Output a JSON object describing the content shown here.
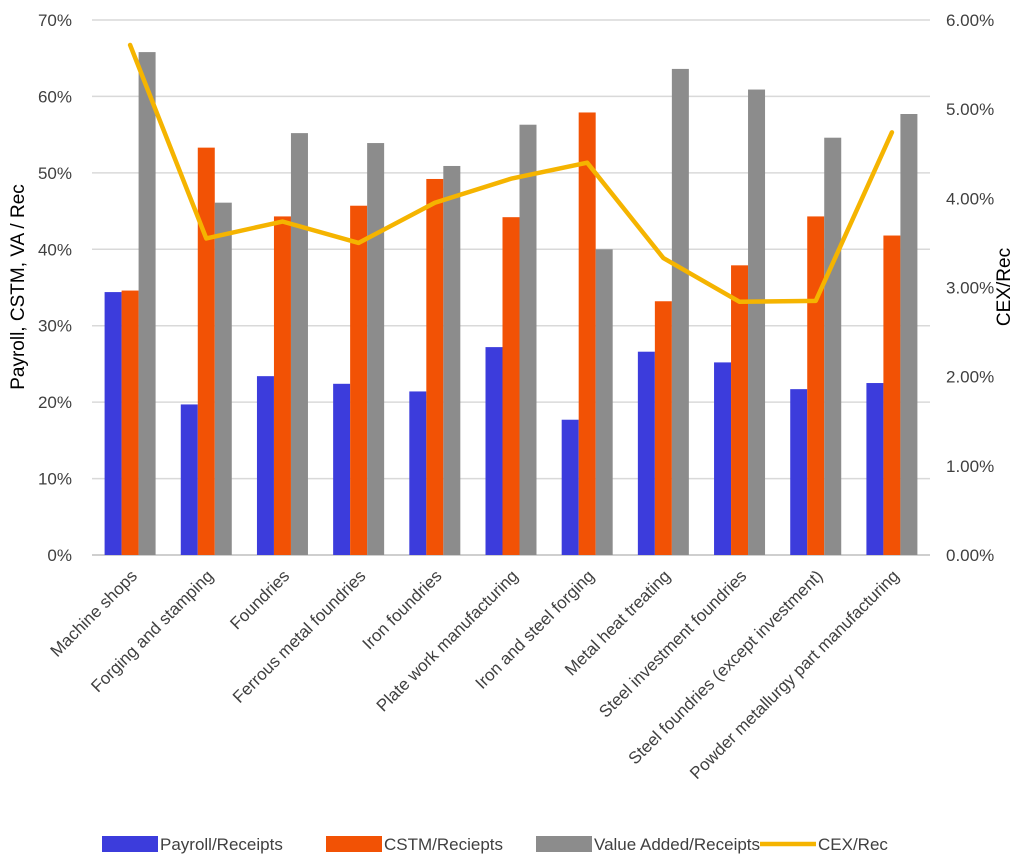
{
  "chart_data": {
    "type": "bar",
    "title": "",
    "xlabel": "",
    "ylabel": "Payroll, CSTM, VA / Rec",
    "y2label": "CEX/Rec",
    "ylim": [
      0,
      70
    ],
    "y2lim": [
      0,
      6
    ],
    "yticks": [
      "0%",
      "10%",
      "20%",
      "30%",
      "40%",
      "50%",
      "60%",
      "70%"
    ],
    "y2ticks": [
      "0.00%",
      "1.00%",
      "2.00%",
      "3.00%",
      "4.00%",
      "5.00%",
      "6.00%"
    ],
    "grid": true,
    "legend_position": "bottom",
    "categories": [
      "Machine shops",
      "Forging and stamping",
      "Foundries",
      "Ferrous metal foundries",
      "Iron foundries",
      "Plate work manufacturing",
      "Iron and steel forging",
      "Metal heat treating",
      "Steel investment foundries",
      "Steel foundries (except investment)",
      "Powder metallurgy part manufacturing"
    ],
    "series": [
      {
        "name": "Payroll/Receipts",
        "type": "bar",
        "axis": "left",
        "color": "#3c3cdc",
        "values": [
          34.4,
          19.7,
          23.4,
          22.4,
          21.4,
          27.2,
          17.7,
          26.6,
          25.2,
          21.7,
          22.5
        ]
      },
      {
        "name": "CSTM/Reciepts",
        "type": "bar",
        "axis": "left",
        "color": "#f25205",
        "values": [
          34.6,
          53.3,
          44.3,
          45.7,
          49.2,
          44.2,
          57.9,
          33.2,
          37.9,
          44.3,
          41.8
        ]
      },
      {
        "name": "Value Added/Receipts",
        "type": "bar",
        "axis": "left",
        "color": "#8c8c8c",
        "values": [
          65.8,
          46.1,
          55.2,
          53.9,
          50.9,
          56.3,
          40.0,
          63.6,
          60.9,
          54.6,
          57.7
        ]
      },
      {
        "name": "CEX/Rec",
        "type": "line",
        "axis": "right",
        "color": "#f5b400",
        "values": [
          5.72,
          3.55,
          3.74,
          3.5,
          3.95,
          4.22,
          4.4,
          3.33,
          2.84,
          2.85,
          4.74
        ]
      }
    ]
  }
}
